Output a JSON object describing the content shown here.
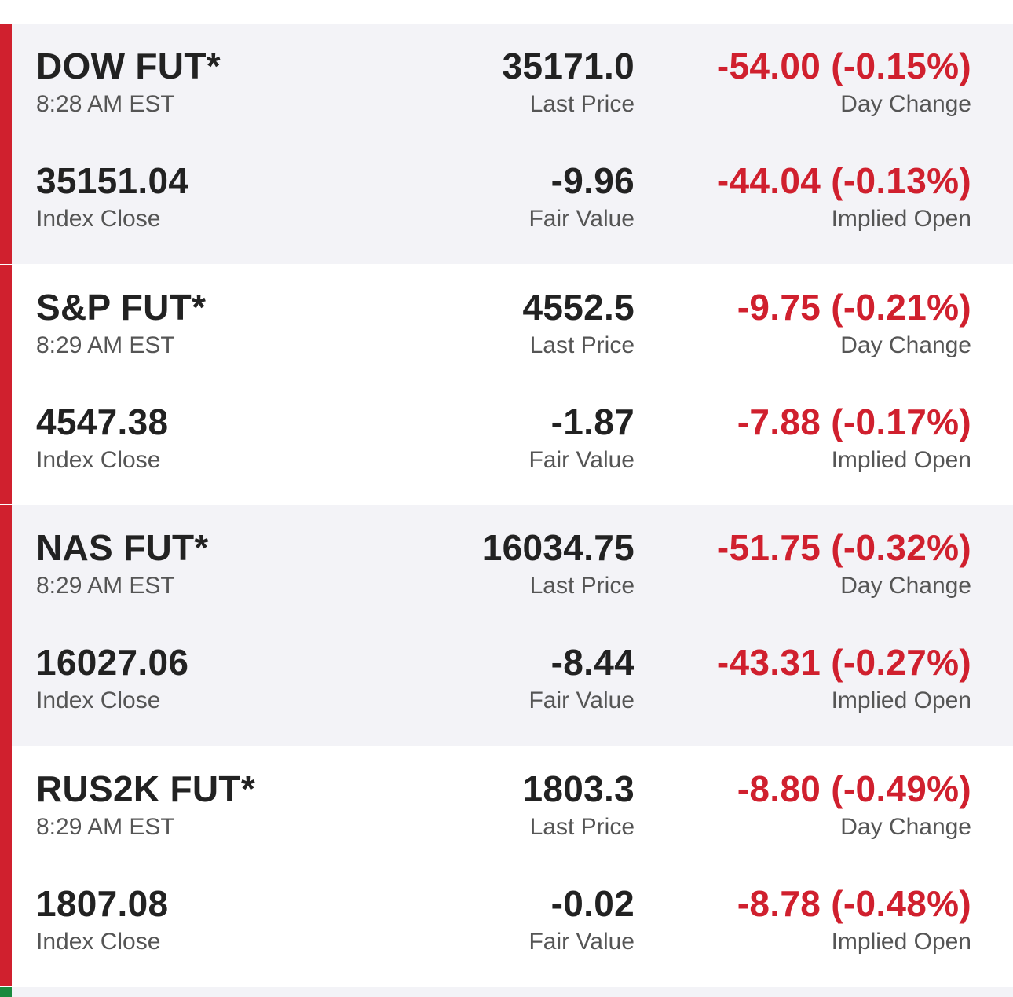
{
  "colors": {
    "negative": "#d0202e",
    "positive": "#1a8a3e",
    "shaded_bg": "#f3f3f7",
    "text_primary": "#222222",
    "text_secondary": "#555555"
  },
  "labels": {
    "last_price": "Last Price",
    "day_change": "Day Change",
    "index_close": "Index Close",
    "fair_value": "Fair Value",
    "implied_open": "Implied Open"
  },
  "futures": [
    {
      "name": "DOW FUT*",
      "time": "8:28 AM EST",
      "last_price": "35171.0",
      "day_change": "-54.00 (-0.15%)",
      "index_close": "35151.04",
      "fair_value": "-9.96",
      "implied_open": "-44.04 (-0.13%)"
    },
    {
      "name": "S&P FUT*",
      "time": "8:29 AM EST",
      "last_price": "4552.5",
      "day_change": "-9.75 (-0.21%)",
      "index_close": "4547.38",
      "fair_value": "-1.87",
      "implied_open": "-7.88 (-0.17%)"
    },
    {
      "name": "NAS FUT*",
      "time": "8:29 AM EST",
      "last_price": "16034.75",
      "day_change": "-51.75 (-0.32%)",
      "index_close": "16027.06",
      "fair_value": "-8.44",
      "implied_open": "-43.31 (-0.27%)"
    },
    {
      "name": "RUS2K FUT*",
      "time": "8:29 AM EST",
      "last_price": "1803.3",
      "day_change": "-8.80 (-0.49%)",
      "index_close": "1807.08",
      "fair_value": "-0.02",
      "implied_open": "-8.78 (-0.48%)"
    }
  ]
}
